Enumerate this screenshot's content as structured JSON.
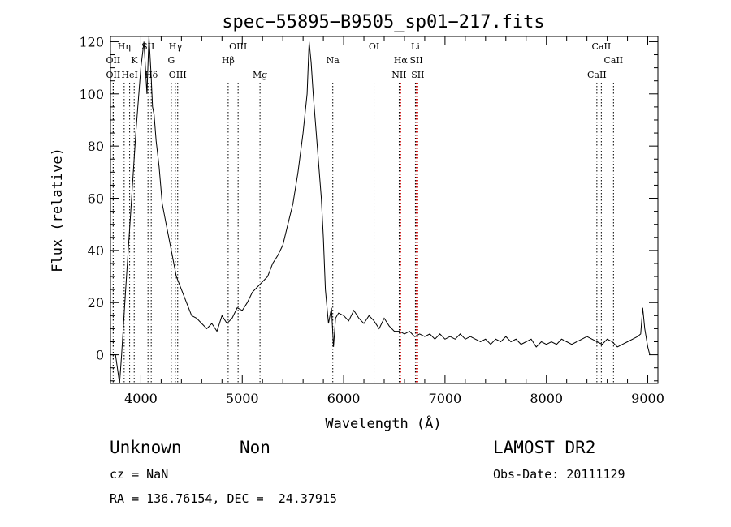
{
  "chart_data": {
    "type": "line",
    "title": "spec−55895−B9505_sp01−217.fits",
    "xlabel": "Wavelength (Å)",
    "ylabel": "Flux (relative)",
    "xlim": [
      3700,
      9100
    ],
    "ylim": [
      -11,
      122
    ],
    "xticks": [
      4000,
      5000,
      6000,
      7000,
      8000,
      9000
    ],
    "yticks": [
      0,
      20,
      40,
      60,
      80,
      100,
      120
    ],
    "grid": false,
    "series": [
      {
        "color": "#000000",
        "x": [
          3700,
          3750,
          3790,
          3810,
          3850,
          3900,
          3950,
          4000,
          4030,
          4060,
          4080,
          4100,
          4115,
          4130,
          4150,
          4180,
          4210,
          4250,
          4300,
          4350,
          4400,
          4450,
          4500,
          4550,
          4600,
          4650,
          4700,
          4750,
          4800,
          4850,
          4900,
          4950,
          5000,
          5050,
          5100,
          5150,
          5200,
          5250,
          5300,
          5350,
          5400,
          5450,
          5500,
          5550,
          5600,
          5640,
          5660,
          5680,
          5700,
          5720,
          5740,
          5760,
          5780,
          5800,
          5820,
          5850,
          5880,
          5900,
          5920,
          5950,
          6000,
          6050,
          6100,
          6150,
          6200,
          6250,
          6300,
          6350,
          6400,
          6450,
          6500,
          6550,
          6600,
          6650,
          6700,
          6750,
          6800,
          6850,
          6900,
          6950,
          7000,
          7050,
          7100,
          7150,
          7200,
          7250,
          7300,
          7350,
          7400,
          7450,
          7500,
          7550,
          7600,
          7650,
          7700,
          7750,
          7800,
          7850,
          7900,
          7950,
          8000,
          8050,
          8100,
          8150,
          8200,
          8250,
          8300,
          8350,
          8400,
          8450,
          8500,
          8550,
          8600,
          8650,
          8700,
          8750,
          8800,
          8850,
          8900,
          8930,
          8950,
          8970,
          9000,
          9020
        ],
        "y": [
          0,
          0,
          -11,
          0,
          25,
          55,
          85,
          110,
          120,
          100,
          122,
          108,
          95,
          92,
          82,
          72,
          58,
          50,
          40,
          30,
          25,
          20,
          15,
          14,
          12,
          10,
          12,
          9,
          15,
          12,
          14,
          18,
          17,
          20,
          24,
          26,
          28,
          30,
          35,
          38,
          42,
          50,
          58,
          70,
          85,
          100,
          120,
          112,
          100,
          90,
          80,
          70,
          60,
          45,
          25,
          12,
          18,
          3,
          14,
          16,
          15,
          13,
          17,
          14,
          12,
          15,
          13,
          10,
          14,
          11,
          9,
          9,
          8,
          9,
          7,
          8,
          7,
          8,
          6,
          8,
          6,
          7,
          6,
          8,
          6,
          7,
          6,
          5,
          6,
          4,
          6,
          5,
          7,
          5,
          6,
          4,
          5,
          6,
          3,
          5,
          4,
          5,
          4,
          6,
          5,
          4,
          5,
          6,
          7,
          6,
          5,
          4,
          6,
          5,
          3,
          4,
          5,
          6,
          7,
          8,
          18,
          10,
          3,
          0
        ]
      }
    ],
    "lines": [
      {
        "x": 3727,
        "label": "OII",
        "row": 2,
        "color": "#000000"
      },
      {
        "x": 3727,
        "label": "OII",
        "row": 3,
        "color": "#000000"
      },
      {
        "x": 3835,
        "label": "Hη",
        "row": 1,
        "color": "#000000"
      },
      {
        "x": 3889,
        "label": "HeI",
        "row": 3,
        "color": "#000000"
      },
      {
        "x": 3934,
        "label": "K",
        "row": 2,
        "color": "#000000"
      },
      {
        "x": 4070,
        "label": "SII",
        "row": 1,
        "color": "#000000"
      },
      {
        "x": 4102,
        "label": "Hδ",
        "row": 3,
        "color": "#000000"
      },
      {
        "x": 4300,
        "label": "G",
        "row": 2,
        "color": "#000000"
      },
      {
        "x": 4340,
        "label": "Hγ",
        "row": 1,
        "color": "#000000"
      },
      {
        "x": 4363,
        "label": "OIII",
        "row": 3,
        "color": "#000000"
      },
      {
        "x": 4861,
        "label": "Hβ",
        "row": 2,
        "color": "#000000"
      },
      {
        "x": 4959,
        "label": "OIII",
        "row": 1,
        "color": "#000000"
      },
      {
        "x": 5175,
        "label": "Mg",
        "row": 3,
        "color": "#000000"
      },
      {
        "x": 5893,
        "label": "Na",
        "row": 2,
        "color": "#000000"
      },
      {
        "x": 6300,
        "label": "OI",
        "row": 1,
        "color": "#000000"
      },
      {
        "x": 6548,
        "label": "NII",
        "row": 3,
        "color": "#000000"
      },
      {
        "x": 6563,
        "label": "Hα",
        "row": 2,
        "color": "#cc0000"
      },
      {
        "x": 6708,
        "label": "Li",
        "row": 1,
        "color": "#000000"
      },
      {
        "x": 6717,
        "label": "SII",
        "row": 2,
        "color": "#cc0000"
      },
      {
        "x": 6731,
        "label": "SII",
        "row": 3,
        "color": "#cc0000"
      },
      {
        "x": 8498,
        "label": "CaII",
        "row": 3,
        "color": "#000000"
      },
      {
        "x": 8542,
        "label": "CaII",
        "row": 1,
        "color": "#000000"
      },
      {
        "x": 8662,
        "label": "CaII",
        "row": 2,
        "color": "#000000"
      }
    ]
  },
  "info": {
    "class": "Unknown",
    "subclass": "Non",
    "survey": "LAMOST DR2",
    "cz": "cz = NaN",
    "obs_date": "Obs-Date: 20111129",
    "coords": "RA = 136.76154, DEC =  24.37915"
  }
}
